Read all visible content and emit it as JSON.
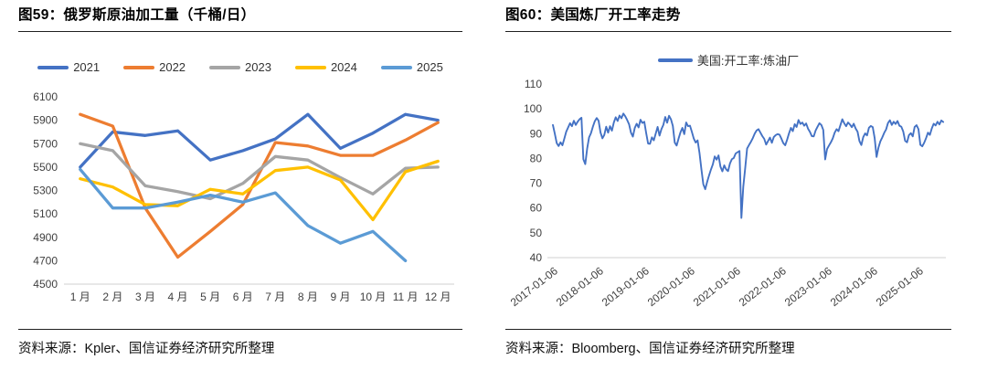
{
  "panels": {
    "left": {
      "title": "图59：俄罗斯原油加工量（千桶/日）",
      "source": "资料来源：Kpler、国信证券经济研究所整理"
    },
    "right": {
      "title": "图60：美国炼厂开工率走势",
      "source": "资料来源：Bloomberg、国信证券经济研究所整理"
    }
  },
  "colors": {
    "axis": "#d9d9d9",
    "tick_text": "#404040",
    "rule": "#1f1f1f"
  },
  "chart_data": [
    {
      "type": "line",
      "title": "俄罗斯原油加工量（千桶/日）",
      "categories": [
        "1 月",
        "2 月",
        "3 月",
        "4 月",
        "5 月",
        "6 月",
        "7 月",
        "8 月",
        "9 月",
        "10 月",
        "11 月",
        "12 月"
      ],
      "ylabel": "千桶/日",
      "ylim": [
        4500,
        6100
      ],
      "ytick": 200,
      "grid": false,
      "legend_position": "top",
      "series": [
        {
          "name": "2021",
          "color": "#4472C4",
          "values": [
            5500,
            5800,
            5770,
            5810,
            5560,
            5640,
            5740,
            5950,
            5660,
            5790,
            5950,
            5900
          ]
        },
        {
          "name": "2022",
          "color": "#ED7D31",
          "values": [
            5950,
            5850,
            5150,
            4730,
            4950,
            5180,
            5710,
            5680,
            5600,
            5600,
            5730,
            5880
          ]
        },
        {
          "name": "2023",
          "color": "#A5A5A5",
          "values": [
            5700,
            5640,
            5340,
            5290,
            5230,
            5360,
            5590,
            5560,
            5410,
            5270,
            5490,
            5500
          ]
        },
        {
          "name": "2024",
          "color": "#FFC000",
          "values": [
            5400,
            5330,
            5180,
            5170,
            5310,
            5270,
            5470,
            5500,
            5390,
            5050,
            5460,
            5550
          ]
        },
        {
          "name": "2025",
          "color": "#5B9BD5",
          "values": [
            5480,
            5150,
            5150,
            5200,
            5260,
            5200,
            5280,
            5000,
            4850,
            4950,
            4700,
            null
          ]
        }
      ]
    },
    {
      "type": "line",
      "title": "美国炼厂开工率走势",
      "x_tick_labels": [
        "2017-01-06",
        "2018-01-06",
        "2019-01-06",
        "2020-01-06",
        "2021-01-06",
        "2022-01-06",
        "2023-01-06",
        "2024-01-06",
        "2025-01-06"
      ],
      "points_per_year": 24,
      "ylim": [
        40,
        110
      ],
      "ytick": 10,
      "grid": false,
      "legend_position": "top",
      "series": [
        {
          "name": "美国:开工率:炼油厂",
          "color": "#4472C4",
          "values": [
            93.5,
            90,
            86.2,
            85,
            86.5,
            85.3,
            88,
            90.8,
            92.5,
            94.2,
            93,
            95.2,
            93.5,
            94.8,
            95.8,
            96.4,
            79.7,
            77.7,
            84,
            88.5,
            90.2,
            92.8,
            95,
            96.3,
            95.2,
            90.5,
            88.1,
            89.5,
            92.8,
            90.4,
            93,
            91.2,
            94.5,
            96.6,
            95.1,
            97.3,
            96.2,
            98.1,
            97,
            95.5,
            93.8,
            90.4,
            88.8,
            92.3,
            94,
            92.5,
            95.6,
            94.3,
            94.8,
            90.2,
            86,
            85.9,
            88.5,
            87.3,
            90,
            92.7,
            89.2,
            91.8,
            93.5,
            96.7,
            94.4,
            97.2,
            95.8,
            93.1,
            86.4,
            85.2,
            88,
            90.5,
            92.3,
            89.8,
            94.5,
            93,
            93.2,
            90.7,
            88,
            86.4,
            87.3,
            82.2,
            75.6,
            69.6,
            67.6,
            70.5,
            73.1,
            75.5,
            77.6,
            80.8,
            79.5,
            81.2,
            76.7,
            74.8,
            77.2,
            75.6,
            74.9,
            78,
            79.7,
            80.2,
            82,
            82.5,
            83,
            56,
            68.6,
            76.1,
            84,
            85.4,
            86.7,
            88.2,
            90,
            91.3,
            91.8,
            90.4,
            89,
            87.9,
            85.6,
            87,
            88.4,
            86.3,
            88.6,
            89.4,
            89.8,
            89.6,
            88,
            86.2,
            85.3,
            87.5,
            90.1,
            92.3,
            91,
            93.8,
            92.7,
            95.5,
            93.9,
            94.5,
            93.2,
            94.1,
            92,
            90.7,
            89,
            88.9,
            91.3,
            92.8,
            94.2,
            93.5,
            91.5,
            79.6,
            83.8,
            85.2,
            86.5,
            88.1,
            90.4,
            91.8,
            91,
            93.4,
            95.8,
            94.2,
            93,
            94.5,
            93.7,
            92.6,
            94,
            92.1,
            90.8,
            87,
            85.4,
            88.6,
            90.1,
            89.3,
            92.4,
            93.1,
            92.6,
            88.2,
            80.6,
            84.4,
            86.9,
            88.5,
            90.3,
            91.7,
            94.3,
            95.4,
            93.5,
            94.8,
            93.9,
            95.1,
            93.2,
            92.8,
            90.9,
            87.1,
            86.5,
            89.4,
            90.2,
            88.9,
            92.7,
            93.4,
            91.8,
            85.5,
            84.9,
            86.3,
            88.2,
            90.4,
            89.5,
            92.1,
            94,
            93.3,
            94.8,
            93.7,
            95.3,
            94.7
          ]
        }
      ]
    }
  ]
}
